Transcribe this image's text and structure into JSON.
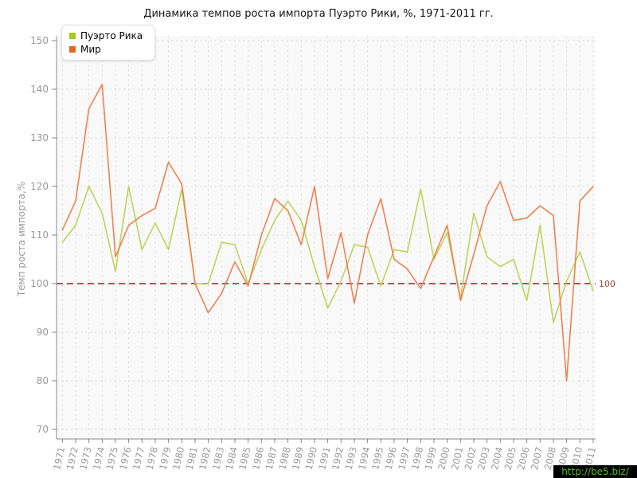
{
  "title": "Динамика темпов роста импорта Пуэрто Рики, %, 1971-2011 гг.",
  "watermark": "http://be5.biz/",
  "legend": {
    "items": [
      {
        "label": "Пуэрто Рика",
        "color": "#a7c922"
      },
      {
        "label": "Мир",
        "color": "#e2661c"
      }
    ]
  },
  "chart_data": {
    "type": "line",
    "title": "Динамика темпов роста импорта Пуэрто Рики, %, 1971-2011 гг.",
    "xlabel": "",
    "ylabel": "Темп роста импорта,%",
    "ylim": [
      70,
      150
    ],
    "yticks": [
      70,
      80,
      90,
      100,
      110,
      120,
      130,
      140,
      150
    ],
    "grid": true,
    "legend_position": "top-left",
    "guide": {
      "value": 100,
      "label": "100",
      "color": "#a65b5b",
      "label_color": "#9e4343"
    },
    "x": [
      1971,
      1972,
      1973,
      1974,
      1975,
      1976,
      1977,
      1978,
      1979,
      1980,
      1981,
      1982,
      1983,
      1984,
      1985,
      1986,
      1987,
      1988,
      1989,
      1990,
      1991,
      1992,
      1993,
      1994,
      1995,
      1996,
      1997,
      1998,
      1999,
      2000,
      2001,
      2002,
      2003,
      2004,
      2005,
      2006,
      2007,
      2008,
      2009,
      2010,
      2011
    ],
    "series": [
      {
        "id": "puerto-rico",
        "name": "Пуэрто Рика",
        "color": "#bdd45b",
        "values": [
          108.5,
          112,
          120,
          114.5,
          102.5,
          120,
          107,
          112.5,
          107,
          119.5,
          100,
          100,
          108.5,
          108,
          100,
          107,
          113,
          117,
          113,
          103.5,
          95,
          100.5,
          108,
          107.5,
          99.5,
          107,
          106.5,
          119.5,
          105,
          110.5,
          97,
          114.5,
          105.5,
          103.5,
          105,
          96.5,
          112,
          92,
          100.5,
          106.5,
          98.5
        ]
      },
      {
        "id": "mir",
        "name": "Мир",
        "color": "#ee8150",
        "values": [
          111,
          117,
          136,
          141,
          105.5,
          112,
          114,
          115.5,
          125,
          120.5,
          100,
          94,
          98,
          104.5,
          99.5,
          110,
          117.5,
          115,
          108,
          120,
          101,
          110.5,
          96,
          110,
          117.5,
          105,
          103,
          99,
          105.5,
          112,
          96.5,
          106,
          116,
          121,
          113,
          113.5,
          116,
          114,
          80,
          117,
          120
        ]
      }
    ],
    "colors": {
      "axis": "#8a8a8a",
      "grid": "#e3e3e3",
      "tick_text": "#9a9a9a",
      "plot_bg": "#f9f9f9"
    }
  }
}
